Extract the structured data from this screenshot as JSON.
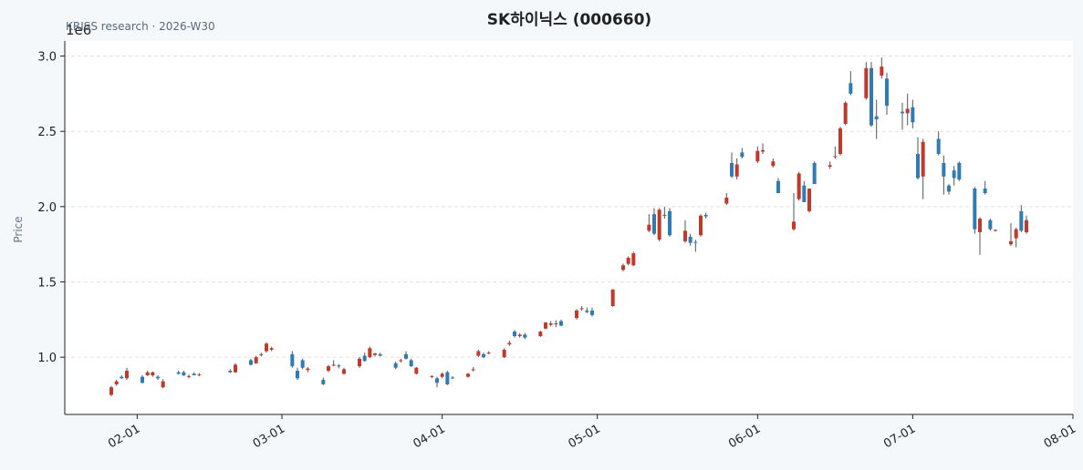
{
  "chart_data": {
    "type": "candlestick",
    "title": "SK하이닉스 (000660)",
    "subtitle": "KRISS research · 2026-W30",
    "y_label": "Price",
    "y_offset_label": "1e6",
    "up_color": "#c0392b",
    "down_color": "#2e7bb5",
    "wick_color": "#555555",
    "grid": true,
    "xlim": [
      "01-18",
      "08-01"
    ],
    "xticks": [
      "02-01",
      "03-01",
      "04-01",
      "05-01",
      "06-01",
      "07-01",
      "08-01"
    ],
    "ylim": [
      620000,
      3100000
    ],
    "yticks": [
      {
        "value": 1000000,
        "label": "1.0"
      },
      {
        "value": 1500000,
        "label": "1.5"
      },
      {
        "value": 2000000,
        "label": "2.0"
      },
      {
        "value": 2500000,
        "label": "2.5"
      },
      {
        "value": 3000000,
        "label": "3.0"
      }
    ],
    "x": [
      "01-27",
      "01-28",
      "01-29",
      "01-30",
      "02-02",
      "02-03",
      "02-04",
      "02-05",
      "02-06",
      "02-09",
      "02-10",
      "02-11",
      "02-12",
      "02-13",
      "02-19",
      "02-20",
      "02-23",
      "02-24",
      "02-25",
      "02-26",
      "02-27",
      "03-03",
      "03-04",
      "03-05",
      "03-06",
      "03-09",
      "03-10",
      "03-11",
      "03-12",
      "03-13",
      "03-16",
      "03-17",
      "03-18",
      "03-19",
      "03-20",
      "03-23",
      "03-24",
      "03-25",
      "03-26",
      "03-27",
      "03-30",
      "03-31",
      "04-01",
      "04-02",
      "04-03",
      "04-06",
      "04-07",
      "04-08",
      "04-09",
      "04-10",
      "04-13",
      "04-14",
      "04-15",
      "04-16",
      "04-17",
      "04-20",
      "04-21",
      "04-22",
      "04-23",
      "04-24",
      "04-27",
      "04-28",
      "04-29",
      "04-30",
      "05-04",
      "05-06",
      "05-07",
      "05-08",
      "05-11",
      "05-12",
      "05-13",
      "05-14",
      "05-15",
      "05-18",
      "05-19",
      "05-20",
      "05-21",
      "05-22",
      "05-26",
      "05-27",
      "05-28",
      "05-29",
      "06-01",
      "06-02",
      "06-04",
      "06-05",
      "06-08",
      "06-09",
      "06-10",
      "06-11",
      "06-12",
      "06-15",
      "06-16",
      "06-17",
      "06-18",
      "06-19",
      "06-22",
      "06-23",
      "06-24",
      "06-25",
      "06-26",
      "06-29",
      "06-30",
      "07-01",
      "07-02",
      "07-03",
      "07-06",
      "07-07",
      "07-08",
      "07-09",
      "07-10",
      "07-13",
      "07-14",
      "07-15",
      "07-16",
      "07-17",
      "07-20",
      "07-21",
      "07-22",
      "07-23"
    ],
    "open": [
      750000,
      820000,
      870000,
      860000,
      870000,
      880000,
      880000,
      870000,
      800000,
      900000,
      900000,
      870000,
      890000,
      880000,
      910000,
      900000,
      980000,
      960000,
      1015000,
      1040000,
      1050000,
      1020000,
      910000,
      980000,
      915000,
      850000,
      910000,
      945000,
      945000,
      890000,
      940000,
      1010000,
      1000000,
      1015000,
      1020000,
      960000,
      975000,
      1020000,
      980000,
      890000,
      870000,
      860000,
      870000,
      900000,
      865000,
      870000,
      915000,
      1010000,
      1020000,
      1025000,
      1000000,
      1085000,
      1170000,
      1140000,
      1150000,
      1140000,
      1190000,
      1215000,
      1220000,
      1240000,
      1260000,
      1320000,
      1310000,
      1310000,
      1340000,
      1580000,
      1620000,
      1610000,
      1840000,
      1950000,
      1780000,
      1940000,
      1970000,
      1770000,
      1800000,
      1765000,
      1810000,
      1945000,
      2020000,
      2290000,
      2200000,
      2360000,
      2300000,
      2365000,
      2270000,
      2170000,
      1850000,
      2050000,
      2140000,
      1970000,
      2290000,
      2265000,
      2330000,
      2350000,
      2550000,
      2820000,
      2720000,
      2920000,
      2600000,
      2870000,
      2850000,
      2630000,
      2620000,
      2660000,
      2350000,
      2200000,
      2450000,
      2290000,
      2140000,
      2240000,
      2290000,
      2120000,
      1830000,
      2120000,
      1910000,
      1840000,
      1750000,
      1790000,
      1970000,
      1830000
    ],
    "high": [
      810000,
      850000,
      880000,
      930000,
      880000,
      910000,
      905000,
      880000,
      855000,
      910000,
      910000,
      885000,
      900000,
      895000,
      920000,
      960000,
      990000,
      1010000,
      1030000,
      1100000,
      1070000,
      1040000,
      930000,
      990000,
      935000,
      865000,
      950000,
      980000,
      955000,
      930000,
      1000000,
      1030000,
      1070000,
      1030000,
      1030000,
      970000,
      990000,
      1040000,
      990000,
      935000,
      880000,
      870000,
      900000,
      910000,
      875000,
      895000,
      935000,
      1050000,
      1030000,
      1040000,
      1060000,
      1110000,
      1180000,
      1160000,
      1160000,
      1175000,
      1235000,
      1240000,
      1245000,
      1250000,
      1320000,
      1340000,
      1330000,
      1330000,
      1450000,
      1620000,
      1670000,
      1700000,
      1950000,
      1990000,
      1990000,
      2000000,
      1990000,
      1910000,
      1820000,
      1780000,
      1950000,
      1960000,
      2090000,
      2360000,
      2320000,
      2390000,
      2400000,
      2420000,
      2320000,
      2190000,
      2090000,
      2230000,
      2170000,
      2120000,
      2300000,
      2300000,
      2400000,
      2530000,
      2700000,
      2900000,
      2960000,
      2960000,
      2710000,
      2990000,
      2890000,
      2690000,
      2750000,
      2710000,
      2460000,
      2450000,
      2500000,
      2340000,
      2150000,
      2270000,
      2300000,
      2130000,
      1930000,
      2170000,
      1920000,
      1850000,
      1890000,
      1860000,
      2010000,
      1940000
    ],
    "low": [
      740000,
      810000,
      855000,
      850000,
      825000,
      875000,
      870000,
      850000,
      795000,
      885000,
      875000,
      860000,
      880000,
      875000,
      895000,
      895000,
      945000,
      955000,
      1005000,
      1030000,
      1040000,
      930000,
      850000,
      920000,
      900000,
      815000,
      900000,
      940000,
      925000,
      885000,
      930000,
      970000,
      995000,
      1005000,
      1005000,
      920000,
      965000,
      985000,
      935000,
      885000,
      860000,
      800000,
      860000,
      815000,
      855000,
      865000,
      905000,
      1000000,
      995000,
      1020000,
      995000,
      1075000,
      1130000,
      1130000,
      1120000,
      1135000,
      1185000,
      1205000,
      1200000,
      1205000,
      1250000,
      1310000,
      1290000,
      1270000,
      1335000,
      1570000,
      1610000,
      1605000,
      1830000,
      1810000,
      1770000,
      1920000,
      1800000,
      1760000,
      1740000,
      1700000,
      1800000,
      1920000,
      2010000,
      2190000,
      2180000,
      2320000,
      2290000,
      2350000,
      2260000,
      2090000,
      1840000,
      2040000,
      2030000,
      1960000,
      2150000,
      2250000,
      2320000,
      2340000,
      2540000,
      2740000,
      2710000,
      2530000,
      2450000,
      2850000,
      2610000,
      2510000,
      2540000,
      2520000,
      2180000,
      2050000,
      2340000,
      2080000,
      2080000,
      2140000,
      2170000,
      1820000,
      1680000,
      2080000,
      1840000,
      1835000,
      1740000,
      1730000,
      1830000,
      1820000
    ],
    "close": [
      800000,
      840000,
      860000,
      910000,
      830000,
      900000,
      900000,
      860000,
      840000,
      890000,
      880000,
      875000,
      880000,
      885000,
      900000,
      950000,
      950000,
      1000000,
      1020000,
      1090000,
      1060000,
      940000,
      860000,
      930000,
      925000,
      820000,
      940000,
      950000,
      940000,
      920000,
      990000,
      975000,
      1060000,
      1025000,
      1010000,
      930000,
      980000,
      990000,
      940000,
      930000,
      875000,
      830000,
      890000,
      820000,
      860000,
      890000,
      920000,
      1040000,
      1000000,
      1030000,
      1050000,
      1095000,
      1140000,
      1150000,
      1130000,
      1170000,
      1230000,
      1225000,
      1225000,
      1210000,
      1310000,
      1325000,
      1300000,
      1280000,
      1450000,
      1610000,
      1660000,
      1690000,
      1880000,
      1820000,
      1980000,
      1945000,
      1810000,
      1840000,
      1760000,
      1760000,
      1940000,
      1935000,
      2060000,
      2200000,
      2280000,
      2330000,
      2370000,
      2375000,
      2300000,
      2090000,
      1900000,
      2220000,
      2030000,
      2120000,
      2150000,
      2275000,
      2335000,
      2520000,
      2690000,
      2750000,
      2920000,
      2540000,
      2580000,
      2930000,
      2670000,
      2620000,
      2650000,
      2560000,
      2190000,
      2430000,
      2350000,
      2200000,
      2100000,
      2190000,
      2180000,
      1850000,
      1920000,
      2090000,
      1850000,
      1845000,
      1770000,
      1850000,
      1840000,
      1910000
    ]
  }
}
